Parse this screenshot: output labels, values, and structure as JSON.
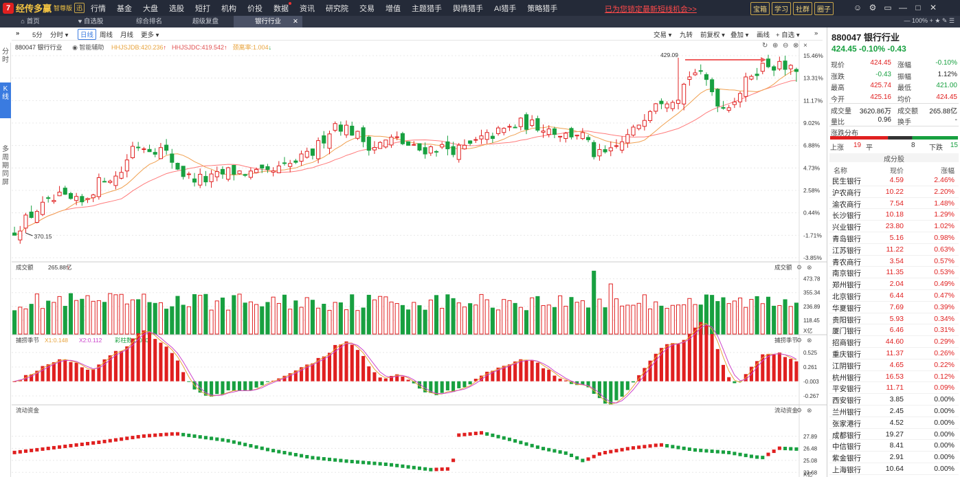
{
  "app": {
    "brand": "经传多赢",
    "edition": "智尊版",
    "tag": "迅"
  },
  "menu": [
    {
      "label": "行情",
      "hot": false
    },
    {
      "label": "基金",
      "hot": false
    },
    {
      "label": "大盘",
      "hot": false
    },
    {
      "label": "选股",
      "hot": false
    },
    {
      "label": "短打",
      "hot": false
    },
    {
      "label": "机构",
      "hot": false
    },
    {
      "label": "价投",
      "hot": false
    },
    {
      "label": "数据",
      "hot": true
    },
    {
      "label": "资讯",
      "hot": false
    },
    {
      "label": "研究院",
      "hot": false
    },
    {
      "label": "交易",
      "hot": false
    },
    {
      "label": "增值",
      "hot": false
    },
    {
      "label": "主题猎手",
      "hot": false
    },
    {
      "label": "舆情猎手",
      "hot": false
    },
    {
      "label": "AI猎手",
      "hot": false
    },
    {
      "label": "策略猎手",
      "hot": false
    }
  ],
  "promo": "已为您锁定最新短线机会>>",
  "top_buttons": [
    "宝箱",
    "学习",
    "社群",
    "圈子"
  ],
  "top_icons": [
    "user-icon",
    "gear-icon",
    "window-icon",
    "minimize-icon",
    "maximize-icon",
    "close-icon"
  ],
  "tabs": [
    {
      "label": "首页",
      "icon": "home-icon",
      "active": false
    },
    {
      "label": "自选股",
      "icon": "heart-icon",
      "active": false
    },
    {
      "label": "综合排名",
      "icon": "",
      "active": false
    },
    {
      "label": "超级复盘",
      "icon": "",
      "active": false
    },
    {
      "label": "银行行业",
      "icon": "",
      "active": true
    }
  ],
  "tab_right": "100%",
  "side_nav": [
    {
      "label": "分时",
      "active": false
    },
    {
      "label": "K线",
      "active": true
    },
    {
      "label": "多周期同屏",
      "active": false
    }
  ],
  "toolbar": {
    "left": [
      {
        "label": "5分",
        "sel": false
      },
      {
        "label": "分时 ▾",
        "sel": false
      },
      {
        "label": "日线",
        "sel": true
      },
      {
        "label": "周线",
        "sel": false
      },
      {
        "label": "月线",
        "sel": false
      },
      {
        "label": "更多 ▾",
        "sel": false
      }
    ],
    "right": [
      "交易 ▾",
      "九转",
      "前复权 ▾",
      "叠加 ▾",
      "画线",
      "+ 自选 ▾"
    ]
  },
  "info": {
    "code_name": "880047 银行行业",
    "assist": "智能辅助",
    "items": [
      {
        "text": "HHJSJDB:420.236",
        "color": "#e8a33c",
        "arrow": "up"
      },
      {
        "text": "HHJSJDC:419.542",
        "color": "#e05050",
        "arrow": "up"
      },
      {
        "text": "颈离率:1.004",
        "color": "#e8a33c",
        "arrow": "down"
      }
    ]
  },
  "chart_data": {
    "type": "candlestick",
    "price_axis_labels": [
      "15.46%",
      "13.31%",
      "11.17%",
      "9.02%",
      "6.88%",
      "4.73%",
      "2.58%",
      "0.44%",
      "-1.71%",
      "-3.85%"
    ],
    "price_range": [
      360.9,
      430.7
    ],
    "annotations": [
      {
        "text": "429.09",
        "value": 429.09
      },
      {
        "text": "370.15",
        "value": 370.15
      }
    ],
    "colors": {
      "up": "#e02020",
      "down": "#18a040",
      "ma1": "#f0a050",
      "ma2": "#ff7a7a",
      "grid": "#e8e8e8"
    },
    "volume": {
      "title": "成交额",
      "value": "265.88亿",
      "arrow": "up",
      "axis_labels": [
        "473.78",
        "355.34",
        "236.89",
        "118.45"
      ],
      "unit": "X亿",
      "right_label": "成交额",
      "range": [
        0,
        560
      ]
    },
    "indicator1": {
      "title": "捕捞季节",
      "x1": "X1:0.148",
      "x2": "X2:0.112",
      "bars": "彩柱数:0.000",
      "axis_labels": [
        "0.525",
        "0.261",
        "-0.003",
        "-0.267"
      ],
      "right_label": "捕捞季节",
      "range": [
        -0.38,
        0.7
      ]
    },
    "indicator2": {
      "title": "流动资金",
      "axis_labels": [
        "27.89",
        "26.48",
        "25.08",
        "23.68"
      ],
      "unit": "X亿",
      "right_label": "流动资金",
      "range": [
        23.3,
        30.6
      ]
    }
  },
  "quote": {
    "title": "880047 银行行业",
    "price_line": "424.45 -0.10% -0.43",
    "rows": [
      {
        "k1": "现价",
        "v1": "424.45",
        "c1": "red",
        "k2": "涨幅",
        "v2": "-0.10%",
        "c2": "green"
      },
      {
        "k1": "涨跌",
        "v1": "-0.43",
        "c1": "green",
        "k2": "振幅",
        "v2": "1.12%",
        "c2": "dark"
      },
      {
        "k1": "最高",
        "v1": "425.74",
        "c1": "red",
        "k2": "最低",
        "v2": "421.00",
        "c2": "green"
      },
      {
        "k1": "今开",
        "v1": "425.16",
        "c1": "red",
        "k2": "均价",
        "v2": "424.45",
        "c2": "red"
      },
      {
        "k1": "成交量",
        "v1": "3620.86万",
        "c1": "dark",
        "k2": "成交额",
        "v2": "265.88亿",
        "c2": "dark"
      },
      {
        "k1": "量比",
        "v1": "0.96",
        "c1": "dark",
        "k2": "换手",
        "v2": "-",
        "c2": "dark"
      }
    ],
    "dist_label": "涨跌分布",
    "dist": {
      "up_label": "上涨",
      "up": "19",
      "flat_label": "平",
      "flat": "8",
      "down_label": "下跌",
      "down": "15",
      "up_n": 19,
      "flat_n": 8,
      "down_n": 15
    }
  },
  "constituents": {
    "header": "成分股",
    "cols": [
      "名称",
      "现价",
      "涨幅"
    ],
    "rows": [
      {
        "name": "民生银行",
        "price": "4.59",
        "chg": "2.46%",
        "c": "red"
      },
      {
        "name": "沪农商行",
        "price": "10.22",
        "chg": "2.20%",
        "c": "red"
      },
      {
        "name": "渝农商行",
        "price": "7.54",
        "chg": "1.48%",
        "c": "red"
      },
      {
        "name": "长沙银行",
        "price": "10.18",
        "chg": "1.29%",
        "c": "red"
      },
      {
        "name": "兴业银行",
        "price": "23.80",
        "chg": "1.02%",
        "c": "red"
      },
      {
        "name": "青岛银行",
        "price": "5.16",
        "chg": "0.98%",
        "c": "red"
      },
      {
        "name": "江苏银行",
        "price": "11.22",
        "chg": "0.63%",
        "c": "red"
      },
      {
        "name": "青农商行",
        "price": "3.54",
        "chg": "0.57%",
        "c": "red",
        "blue": true
      },
      {
        "name": "南京银行",
        "price": "11.35",
        "chg": "0.53%",
        "c": "red"
      },
      {
        "name": "郑州银行",
        "price": "2.04",
        "chg": "0.49%",
        "c": "red"
      },
      {
        "name": "北京银行",
        "price": "6.44",
        "chg": "0.47%",
        "c": "red"
      },
      {
        "name": "华夏银行",
        "price": "7.69",
        "chg": "0.39%",
        "c": "red"
      },
      {
        "name": "贵阳银行",
        "price": "5.93",
        "chg": "0.34%",
        "c": "red"
      },
      {
        "name": "厦门银行",
        "price": "6.46",
        "chg": "0.31%",
        "c": "red"
      },
      {
        "name": "招商银行",
        "price": "44.60",
        "chg": "0.29%",
        "c": "red"
      },
      {
        "name": "重庆银行",
        "price": "11.37",
        "chg": "0.26%",
        "c": "red"
      },
      {
        "name": "江阴银行",
        "price": "4.65",
        "chg": "0.22%",
        "c": "red"
      },
      {
        "name": "杭州银行",
        "price": "16.53",
        "chg": "0.12%",
        "c": "red"
      },
      {
        "name": "平安银行",
        "price": "11.71",
        "chg": "0.09%",
        "c": "red"
      },
      {
        "name": "西安银行",
        "price": "3.85",
        "chg": "0.00%",
        "c": "dark"
      },
      {
        "name": "兰州银行",
        "price": "2.45",
        "chg": "0.00%",
        "c": "dark"
      },
      {
        "name": "张家港行",
        "price": "4.52",
        "chg": "0.00%",
        "c": "dark"
      },
      {
        "name": "成都银行",
        "price": "19.27",
        "chg": "0.00%",
        "c": "dark"
      },
      {
        "name": "中信银行",
        "price": "8.41",
        "chg": "0.00%",
        "c": "dark"
      },
      {
        "name": "紫金银行",
        "price": "2.91",
        "chg": "0.00%",
        "c": "dark"
      },
      {
        "name": "上海银行",
        "price": "10.64",
        "chg": "0.00%",
        "c": "dark",
        "blue": true
      }
    ]
  }
}
